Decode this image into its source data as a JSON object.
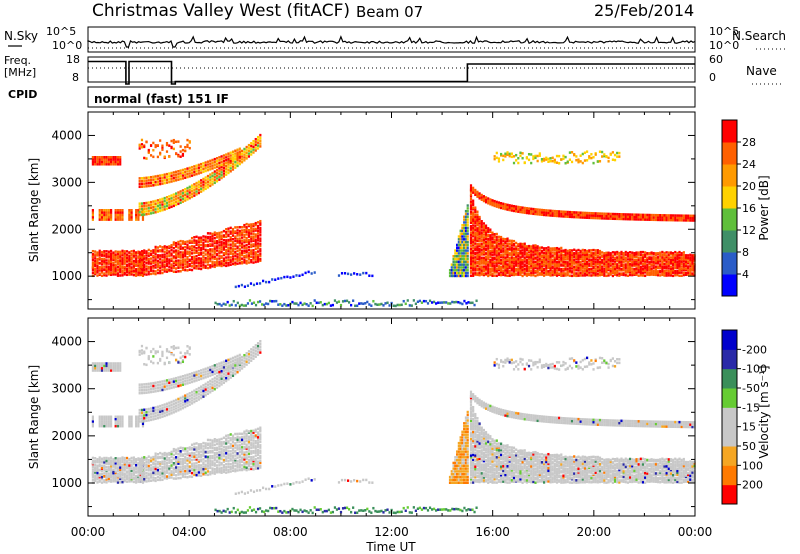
{
  "header": {
    "title": "Christmas Valley West (fitACF)",
    "beam": "Beam 07",
    "date": "25/Feb/2014"
  },
  "side_labels": {
    "nsky": "N.Sky",
    "freq_line1": "Freq.",
    "freq_line2": "[MHz]",
    "cpid": "CPID",
    "nsearch": "N.Search",
    "nave": "Nave"
  },
  "cpid_text": "normal (fast) 151 IF",
  "colors": {
    "power_scale": [
      "#0000ff",
      "#2a5cc8",
      "#3f8f67",
      "#5fbf3a",
      "#ffd200",
      "#ff9a00",
      "#ff6000",
      "#ff0000"
    ],
    "velocity_scale": [
      "#ff0000",
      "#ff7a00",
      "#f5a623",
      "#c8c8c8",
      "#c8c8c8",
      "#66cc33",
      "#3a8f5a",
      "#2a2aa8",
      "#0000cc"
    ]
  },
  "chart_data": [
    {
      "type": "line",
      "name": "sky-noise",
      "ylabel": "N.Sky",
      "yticks_left": [
        "10^5",
        "10^0"
      ],
      "yticks_right": [
        "10^5",
        "10^0"
      ],
      "xlim": [
        0,
        24
      ]
    },
    {
      "type": "line",
      "name": "frequency",
      "ylabel": "Freq. [MHz]",
      "yticks_left": [
        "18",
        "8"
      ],
      "yticks_right": [
        "60",
        "0"
      ],
      "frequency_steps": [
        {
          "t0": 0.0,
          "t1": 1.5,
          "mhz": 17
        },
        {
          "t0": 1.5,
          "t1": 1.62,
          "mhz": 8
        },
        {
          "t0": 1.62,
          "t1": 3.3,
          "mhz": 17
        },
        {
          "t0": 3.3,
          "t1": 3.45,
          "mhz": 8
        },
        {
          "t0": 3.45,
          "t1": 15.0,
          "mhz": 9
        },
        {
          "t0": 15.0,
          "t1": 24.0,
          "mhz": 16
        }
      ],
      "xlim": [
        0,
        24
      ]
    },
    {
      "type": "heatmap",
      "name": "power",
      "ylabel": "Slant Range [km]",
      "yticks": [
        1000,
        2000,
        3000,
        4000
      ],
      "ylim": [
        300,
        4500
      ],
      "xlim": [
        0,
        24
      ],
      "colorbar_label": "Power [dB]",
      "colorbar_ticks": [
        "4",
        "8",
        "12",
        "16",
        "20",
        "24",
        "28"
      ],
      "colorbar_range": [
        0,
        30
      ]
    },
    {
      "type": "heatmap",
      "name": "velocity",
      "ylabel": "Slant Range [km]",
      "yticks": [
        1000,
        2000,
        3000,
        4000
      ],
      "ylim": [
        300,
        4500
      ],
      "xlim": [
        0,
        24
      ],
      "xlabel": "Time UT",
      "xticks": [
        "00:00",
        "04:00",
        "08:00",
        "12:00",
        "16:00",
        "20:00",
        "00:00"
      ],
      "colorbar_label": "Velocity [m s⁻¹]",
      "colorbar_ticks": [
        "200",
        "100",
        "50",
        "15",
        "-15",
        "-50",
        "-100",
        "-200"
      ],
      "colorbar_range": [
        -250,
        250
      ]
    }
  ]
}
